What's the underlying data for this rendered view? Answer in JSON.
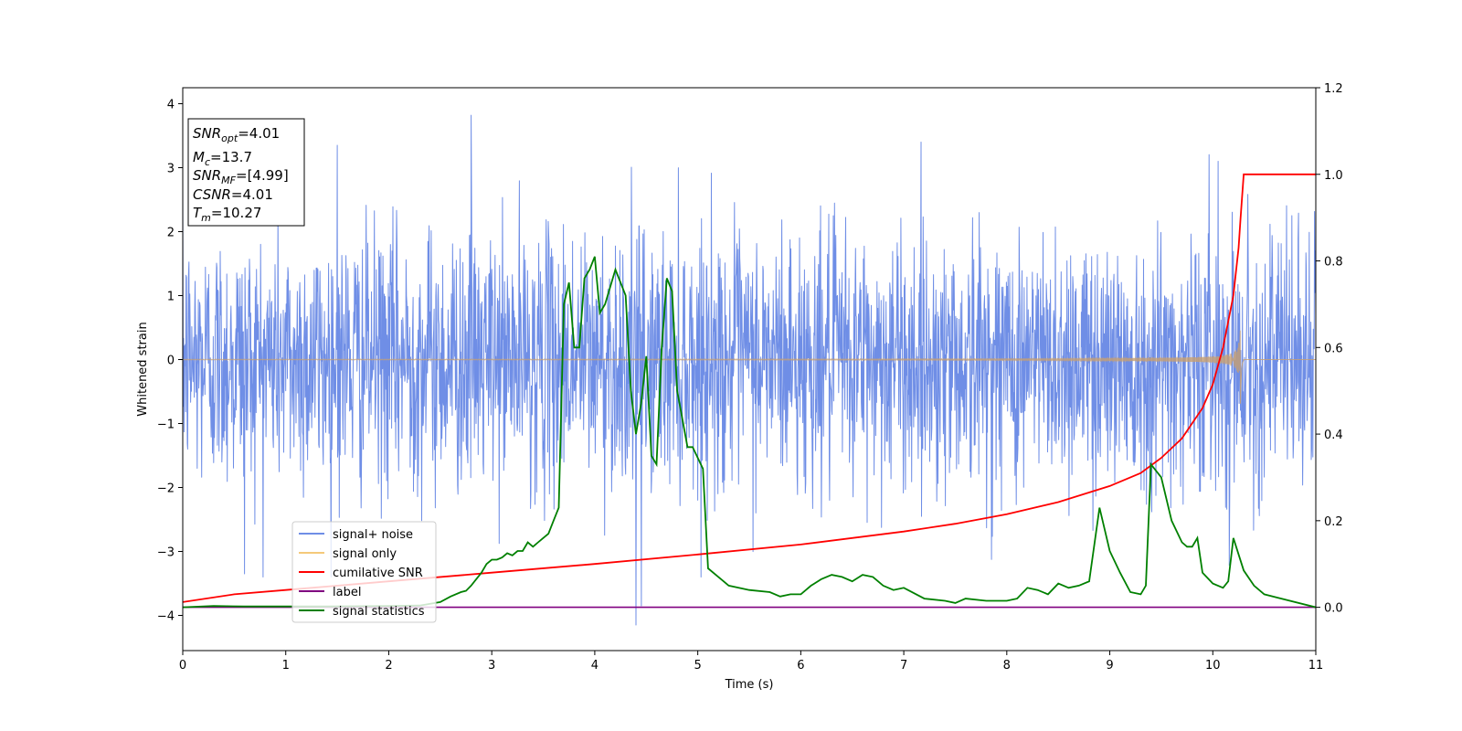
{
  "chart_data": {
    "type": "line",
    "xlabel": "Time (s)",
    "ylabel_left": "Whitened strain",
    "ylabel_right": "",
    "xlim": [
      0,
      11
    ],
    "ylim_left": [
      -4.55,
      4.25
    ],
    "ylim_right": [
      -0.1,
      1.2
    ],
    "x_ticks": [
      0,
      1,
      2,
      3,
      4,
      5,
      6,
      7,
      8,
      9,
      10,
      11
    ],
    "y_left_ticks": [
      -4,
      -3,
      -2,
      -1,
      0,
      1,
      2,
      3,
      4
    ],
    "y_right_ticks": [
      0.0,
      0.2,
      0.4,
      0.6,
      0.8,
      1.0,
      1.2
    ],
    "grid": false,
    "legend_position": "lower-left",
    "info_box": {
      "snr_opt": "4.01",
      "mc": "13.7",
      "snr_mf": "[4.99]",
      "csnr": "4.01",
      "tm": "10.27"
    },
    "series": [
      {
        "name": "signal+ noise",
        "color": "#6f8ee6",
        "axis": "left",
        "kind": "noise",
        "sigma": 1.0,
        "dt": 0.004,
        "notable_extremes": [
          [
            2.8,
            3.82
          ],
          [
            1.5,
            3.35
          ],
          [
            10.05,
            3.1
          ],
          [
            4.4,
            -4.15
          ],
          [
            4.45,
            -3.85
          ],
          [
            0.6,
            -3.35
          ]
        ]
      },
      {
        "name": "signal only",
        "color": "#f5c97a",
        "axis": "left",
        "kind": "chirp",
        "merger_time": 10.27,
        "peak_amplitude": 0.75,
        "ringdown_until": 10.3
      },
      {
        "name": "cumilative SNR",
        "color": "#ff0000",
        "axis": "right",
        "x": [
          0,
          0.5,
          1,
          2,
          3,
          4,
          5,
          6,
          7,
          7.5,
          8,
          8.5,
          9,
          9.3,
          9.5,
          9.7,
          9.9,
          10.0,
          10.1,
          10.2,
          10.25,
          10.27,
          10.3,
          11
        ],
        "y": [
          0.012,
          0.03,
          0.04,
          0.06,
          0.08,
          0.1,
          0.122,
          0.145,
          0.175,
          0.193,
          0.215,
          0.243,
          0.28,
          0.31,
          0.345,
          0.39,
          0.46,
          0.515,
          0.6,
          0.72,
          0.83,
          0.9,
          1.0,
          1.0
        ]
      },
      {
        "name": "label",
        "color": "#800080",
        "axis": "right",
        "x": [
          0,
          11
        ],
        "y": [
          0.0,
          0.0
        ]
      },
      {
        "name": "signal statistics",
        "color": "#008000",
        "axis": "right",
        "x": [
          0,
          0.3,
          0.6,
          1.0,
          1.4,
          2.0,
          2.3,
          2.5,
          2.6,
          2.7,
          2.75,
          2.8,
          2.9,
          2.95,
          3.0,
          3.05,
          3.1,
          3.15,
          3.2,
          3.25,
          3.3,
          3.35,
          3.4,
          3.45,
          3.5,
          3.55,
          3.6,
          3.65,
          3.7,
          3.75,
          3.8,
          3.85,
          3.9,
          3.95,
          4.0,
          4.05,
          4.1,
          4.2,
          4.25,
          4.3,
          4.35,
          4.4,
          4.45,
          4.5,
          4.55,
          4.6,
          4.65,
          4.7,
          4.75,
          4.8,
          4.9,
          4.95,
          5.05,
          5.1,
          5.2,
          5.3,
          5.5,
          5.7,
          5.8,
          5.9,
          6.0,
          6.1,
          6.2,
          6.3,
          6.4,
          6.5,
          6.6,
          6.7,
          6.8,
          6.9,
          7.0,
          7.2,
          7.4,
          7.5,
          7.6,
          7.8,
          8.0,
          8.1,
          8.2,
          8.3,
          8.4,
          8.5,
          8.6,
          8.7,
          8.8,
          8.9,
          9.0,
          9.1,
          9.2,
          9.3,
          9.35,
          9.4,
          9.5,
          9.6,
          9.7,
          9.75,
          9.8,
          9.85,
          9.9,
          10.0,
          10.1,
          10.15,
          10.2,
          10.3,
          10.4,
          10.5,
          11.0
        ],
        "y": [
          0.0,
          0.003,
          0.002,
          0.002,
          0.002,
          0.003,
          0.004,
          0.012,
          0.025,
          0.035,
          0.038,
          0.05,
          0.08,
          0.1,
          0.11,
          0.11,
          0.115,
          0.125,
          0.12,
          0.13,
          0.13,
          0.15,
          0.14,
          0.15,
          0.16,
          0.17,
          0.2,
          0.23,
          0.7,
          0.75,
          0.6,
          0.6,
          0.76,
          0.78,
          0.81,
          0.68,
          0.7,
          0.78,
          0.75,
          0.72,
          0.5,
          0.4,
          0.47,
          0.58,
          0.35,
          0.33,
          0.6,
          0.76,
          0.73,
          0.5,
          0.37,
          0.37,
          0.32,
          0.09,
          0.07,
          0.05,
          0.04,
          0.035,
          0.025,
          0.03,
          0.03,
          0.05,
          0.065,
          0.075,
          0.07,
          0.06,
          0.075,
          0.07,
          0.05,
          0.04,
          0.045,
          0.02,
          0.015,
          0.01,
          0.02,
          0.015,
          0.015,
          0.02,
          0.045,
          0.04,
          0.03,
          0.055,
          0.045,
          0.05,
          0.06,
          0.23,
          0.13,
          0.08,
          0.035,
          0.03,
          0.05,
          0.33,
          0.3,
          0.2,
          0.15,
          0.14,
          0.14,
          0.16,
          0.08,
          0.055,
          0.045,
          0.06,
          0.16,
          0.085,
          0.05,
          0.03,
          0.0
        ]
      }
    ]
  }
}
